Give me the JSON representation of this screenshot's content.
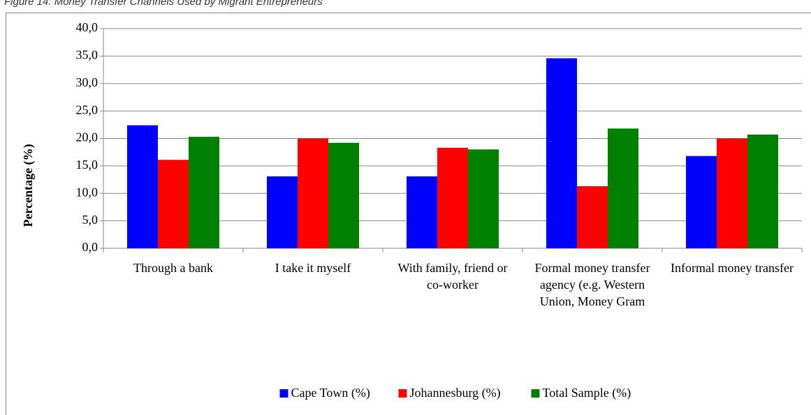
{
  "chart_data": {
    "type": "bar",
    "title": "Figure 14: Money Transfer Channels Used by Migrant Entrepreneurs",
    "y_label": "Percentage (%)",
    "categories": [
      "Through a bank",
      "I take it myself",
      "With family, friend or co-worker",
      "Formal money transfer agency (e.g. Western Union, Money Gram",
      "Informal money transfer"
    ],
    "series": [
      {
        "name": "Cape Town (%)",
        "color": "#0000ff",
        "values": [
          22.4,
          13.1,
          13.1,
          34.6,
          16.8
        ]
      },
      {
        "name": "Johannesburg (%)",
        "color": "#ff0000",
        "values": [
          16.1,
          20.0,
          18.3,
          11.3,
          20.0
        ]
      },
      {
        "name": "Total Sample (%)",
        "color": "#008000",
        "values": [
          20.3,
          19.2,
          18.0,
          21.8,
          20.7
        ]
      }
    ],
    "ylim": [
      0,
      40
    ],
    "yticks": [
      {
        "value": 0,
        "label": "0,0"
      },
      {
        "value": 5,
        "label": "5,0"
      },
      {
        "value": 10,
        "label": "10,0"
      },
      {
        "value": 15,
        "label": "15,0"
      },
      {
        "value": 20,
        "label": "20,0"
      },
      {
        "value": 25,
        "label": "25,0"
      },
      {
        "value": 30,
        "label": "30,0"
      },
      {
        "value": 35,
        "label": "35,0"
      },
      {
        "value": 40,
        "label": "40,0"
      }
    ],
    "grid": true,
    "legend": "bottom"
  }
}
